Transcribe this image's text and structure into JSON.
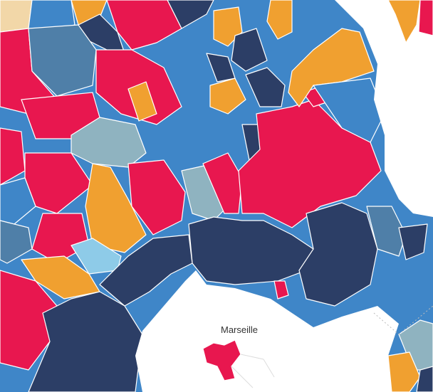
{
  "map": {
    "labels": [
      "Marseille"
    ]
  }
}
